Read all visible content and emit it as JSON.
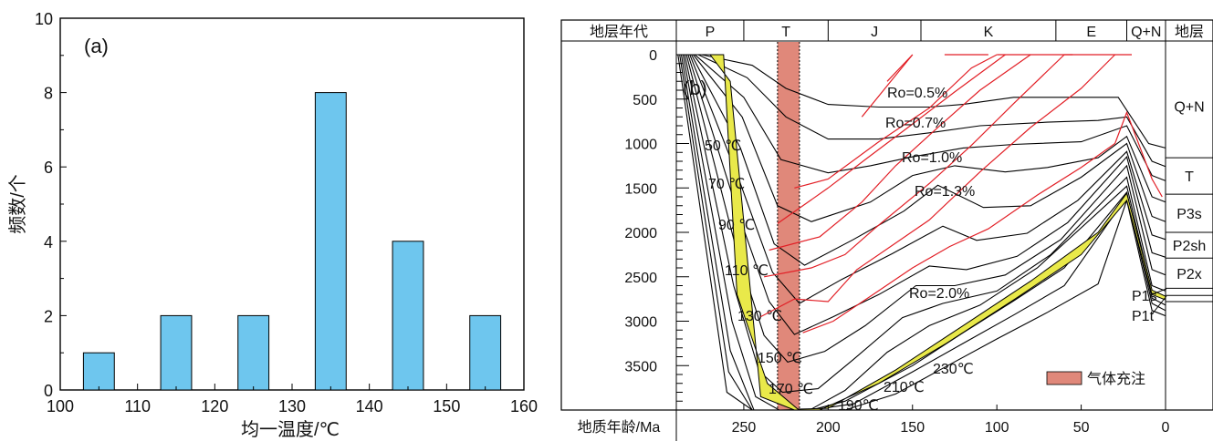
{
  "colors": {
    "bar": "#6ec6ee",
    "gas": "#e0887a",
    "burial": "#e9e94a",
    "ro_line": "#e21f26",
    "ro_text": "#3a5ba8"
  },
  "chart_data": [
    {
      "type": "bar",
      "panel_label": "(a)",
      "xlabel": "均一温度/℃",
      "ylabel": "频数/个",
      "xlim": [
        100,
        160
      ],
      "ylim": [
        0,
        10
      ],
      "xticks": [
        "100",
        "110",
        "120",
        "130",
        "140",
        "150",
        "160"
      ],
      "yticks": [
        "0",
        "2",
        "4",
        "6",
        "8",
        "10"
      ],
      "bins": [
        {
          "x0": 103,
          "x1": 107,
          "value": 1
        },
        {
          "x0": 113,
          "x1": 117,
          "value": 2
        },
        {
          "x0": 123,
          "x1": 127,
          "value": 2
        },
        {
          "x0": 133,
          "x1": 137,
          "value": 8
        },
        {
          "x0": 143,
          "x1": 147,
          "value": 4
        },
        {
          "x0": 153,
          "x1": 157,
          "value": 2
        }
      ]
    },
    {
      "type": "line",
      "panel_label": "(b)",
      "header_left": "地层年代",
      "header_right": "地层",
      "xlabel": "地质年龄/Ma",
      "xlim": [
        290,
        0
      ],
      "ylim": [
        0,
        4000
      ],
      "xticks": [
        "250",
        "200",
        "150",
        "100",
        "50",
        "0"
      ],
      "yticks": [
        "0",
        "500",
        "1000",
        "1500",
        "2000",
        "2500",
        "3000",
        "3500"
      ],
      "periods": [
        {
          "label": "P",
          "from": 290,
          "to": 250
        },
        {
          "label": "T",
          "from": 250,
          "to": 200
        },
        {
          "label": "J",
          "from": 200,
          "to": 145
        },
        {
          "label": "K",
          "from": 145,
          "to": 65
        },
        {
          "label": "E",
          "from": 65,
          "to": 23
        },
        {
          "label": "Q+N",
          "from": 23,
          "to": 0
        }
      ],
      "strata": [
        {
          "label": "Q+N",
          "top": 0,
          "bottom": 1160
        },
        {
          "label": "T",
          "top": 1160,
          "bottom": 1570
        },
        {
          "label": "P3s",
          "top": 1570,
          "bottom": 2000
        },
        {
          "label": "P2sh",
          "top": 2000,
          "bottom": 2290
        },
        {
          "label": "P2x",
          "top": 2290,
          "bottom": 2630
        }
      ],
      "side_labels": [
        "P1s",
        "P1t"
      ],
      "isotherm_labels": [
        "50 ℃",
        "70 ℃",
        "90 ℃",
        "110 ℃",
        "130 ℃",
        "150 ℃",
        "170 ℃",
        "190℃",
        "210℃",
        "230℃"
      ],
      "ro_labels": [
        "Ro=0.5%",
        "Ro=0.7%",
        "Ro=1.0%",
        "Ro=1.3%",
        "Ro=2.0%"
      ],
      "gas_charging": {
        "from": 230,
        "to": 217
      },
      "legend": "气体充注"
    }
  ]
}
